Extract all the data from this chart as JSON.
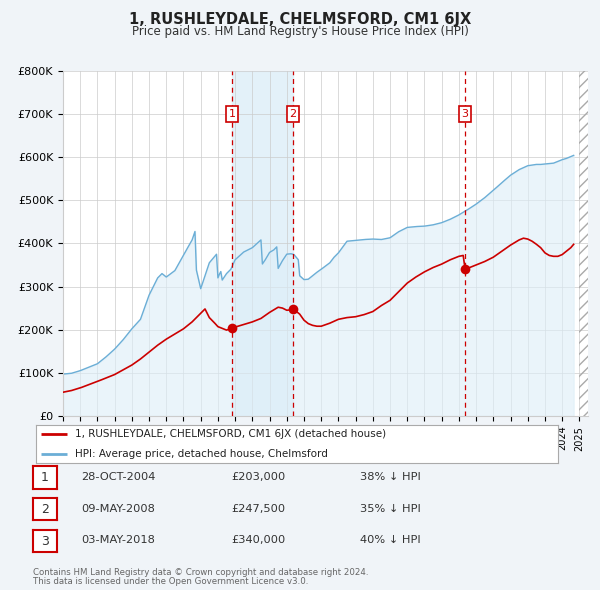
{
  "title": "1, RUSHLEYDALE, CHELMSFORD, CM1 6JX",
  "subtitle": "Price paid vs. HM Land Registry's House Price Index (HPI)",
  "legend_line1": "1, RUSHLEYDALE, CHELMSFORD, CM1 6JX (detached house)",
  "legend_line2": "HPI: Average price, detached house, Chelmsford",
  "footer1": "Contains HM Land Registry data © Crown copyright and database right 2024.",
  "footer2": "This data is licensed under the Open Government Licence v3.0.",
  "sale_color": "#cc0000",
  "hpi_line_color": "#6baed6",
  "hpi_fill_color": "#ddeef8",
  "background_color": "#f0f4f8",
  "plot_bg": "#ffffff",
  "ylim": [
    0,
    800000
  ],
  "yticks": [
    0,
    100000,
    200000,
    300000,
    400000,
    500000,
    600000,
    700000,
    800000
  ],
  "ytick_labels": [
    "£0",
    "£100K",
    "£200K",
    "£300K",
    "£400K",
    "£500K",
    "£600K",
    "£700K",
    "£800K"
  ],
  "xmin": 1995.0,
  "xmax": 2025.5,
  "purchases": [
    {
      "num": 1,
      "date": "28-OCT-2004",
      "x": 2004.82,
      "price": 203000,
      "pct": "38%"
    },
    {
      "num": 2,
      "date": "09-MAY-2008",
      "x": 2008.36,
      "price": 247500,
      "pct": "35%"
    },
    {
      "num": 3,
      "date": "03-MAY-2018",
      "x": 2018.36,
      "price": 340000,
      "pct": "40%"
    }
  ]
}
